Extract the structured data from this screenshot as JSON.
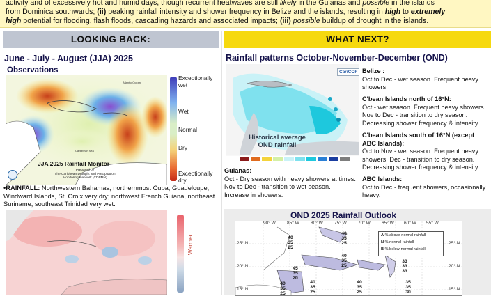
{
  "banner": {
    "line1_a": "activity and of excessively hot and humid days, though recurrent heatwaves are still ",
    "line1_b": "likely",
    "line1_c": " in the Guianas and ",
    "line1_d": "possible",
    "line1_e": " in the islands",
    "line2_a": "from Dominica southwards; ",
    "line2_b": "(ii)",
    "line2_c": " peaking rainfall intensity and shower frequency in Belize and the islands, resulting in ",
    "line2_d": "high",
    "line2_e": " to ",
    "line2_f": "extremely",
    "line3_a": "high",
    "line3_b": " potential for flooding, flash floods, cascading hazards and associated impacts; ",
    "line3_c": "(iii)",
    "line3_d": " ",
    "line3_e": "possible",
    "line3_f": " buildup of drought in the islands."
  },
  "left": {
    "header": "LOOKING BACK:",
    "period_title": "June - July - August (JJA) 2025",
    "observations": "Observations",
    "legend": [
      "Exceptionally wet",
      "Wet",
      "Normal",
      "Dry",
      "Exceptionally dry"
    ],
    "map_caption": "JJA 2025 Rainfall Monitor",
    "map_credit1": "Prepared by",
    "map_credit2": "The Caribbean Drought and Precipitation",
    "map_credit3": "Monitoring Network (CDPMN)",
    "map_ocean": "Atlantic Ocean",
    "map_sea": "Caribbean Sea",
    "rain_label": "RAINFALL:",
    "rain_text": " Northwestern Bahamas, northernmost Cuba, Guadeloupe, Windward Islands, St. Croix very dry; northwest French Guiana, northeast Suriname, southeast Trinidad very wet.",
    "temp_legend": "Warmer"
  },
  "right": {
    "header": "WHAT NEXT?",
    "rain_title": "Rainfall patterns October-November-December (OND)",
    "map_label1": "Historical average",
    "map_label2": "OND rainfall",
    "map_logo": "CariCOF",
    "belize_h": "Belize :",
    "belize_t": "Oct to Dec - wet season. Frequent heavy showers.",
    "north_h": "C'bean Islands north of 16°N:",
    "north_t": "Oct - wet season. Frequent heavy showers Nov to Dec - transition to dry season. Decreasing shower frequency & intensity.",
    "south_h": "C'bean Islands south of 16°N (except ABC Islands):",
    "south_t": "Oct to Nov - wet season. Frequent heavy showers.  Dec - transition to dry season. Decreasing shower frequency & intensity.",
    "guianas_h": "Guianas:",
    "guianas_t": "Oct - Dry season with heavy showers at times. Nov to Dec - transition to wet season. Increase in showers.",
    "abc_h": "ABC Islands:",
    "abc_t": "Oct to Dec - frequent showers, occasionally heavy.",
    "outlook_title": "OND 2025 Rainfall Outlook",
    "outlook_lons": [
      "90° W",
      "85° W",
      "80° W",
      "75° W",
      "70° W",
      "65° W",
      "60° W",
      "55° W"
    ],
    "outlook_lats": [
      "25° N",
      "20° N",
      "15° N"
    ],
    "outlook_legend": [
      {
        "key": "A",
        "text": "% above-normal rainfall"
      },
      {
        "key": "N",
        "text": "% normal rainfall"
      },
      {
        "key": "B",
        "text": "% below-normal rainfall"
      }
    ],
    "outlook_probs": [
      [
        "40",
        "35",
        "25"
      ],
      [
        "40",
        "35",
        "25"
      ],
      [
        "40",
        "35",
        "25"
      ],
      [
        "45",
        "35",
        "20"
      ],
      [
        "40",
        "35",
        "25"
      ],
      [
        "33",
        "33",
        "33"
      ],
      [
        "40",
        "35",
        "25"
      ],
      [
        "40",
        "35",
        "25"
      ],
      [
        "35",
        "35",
        "30"
      ]
    ]
  }
}
